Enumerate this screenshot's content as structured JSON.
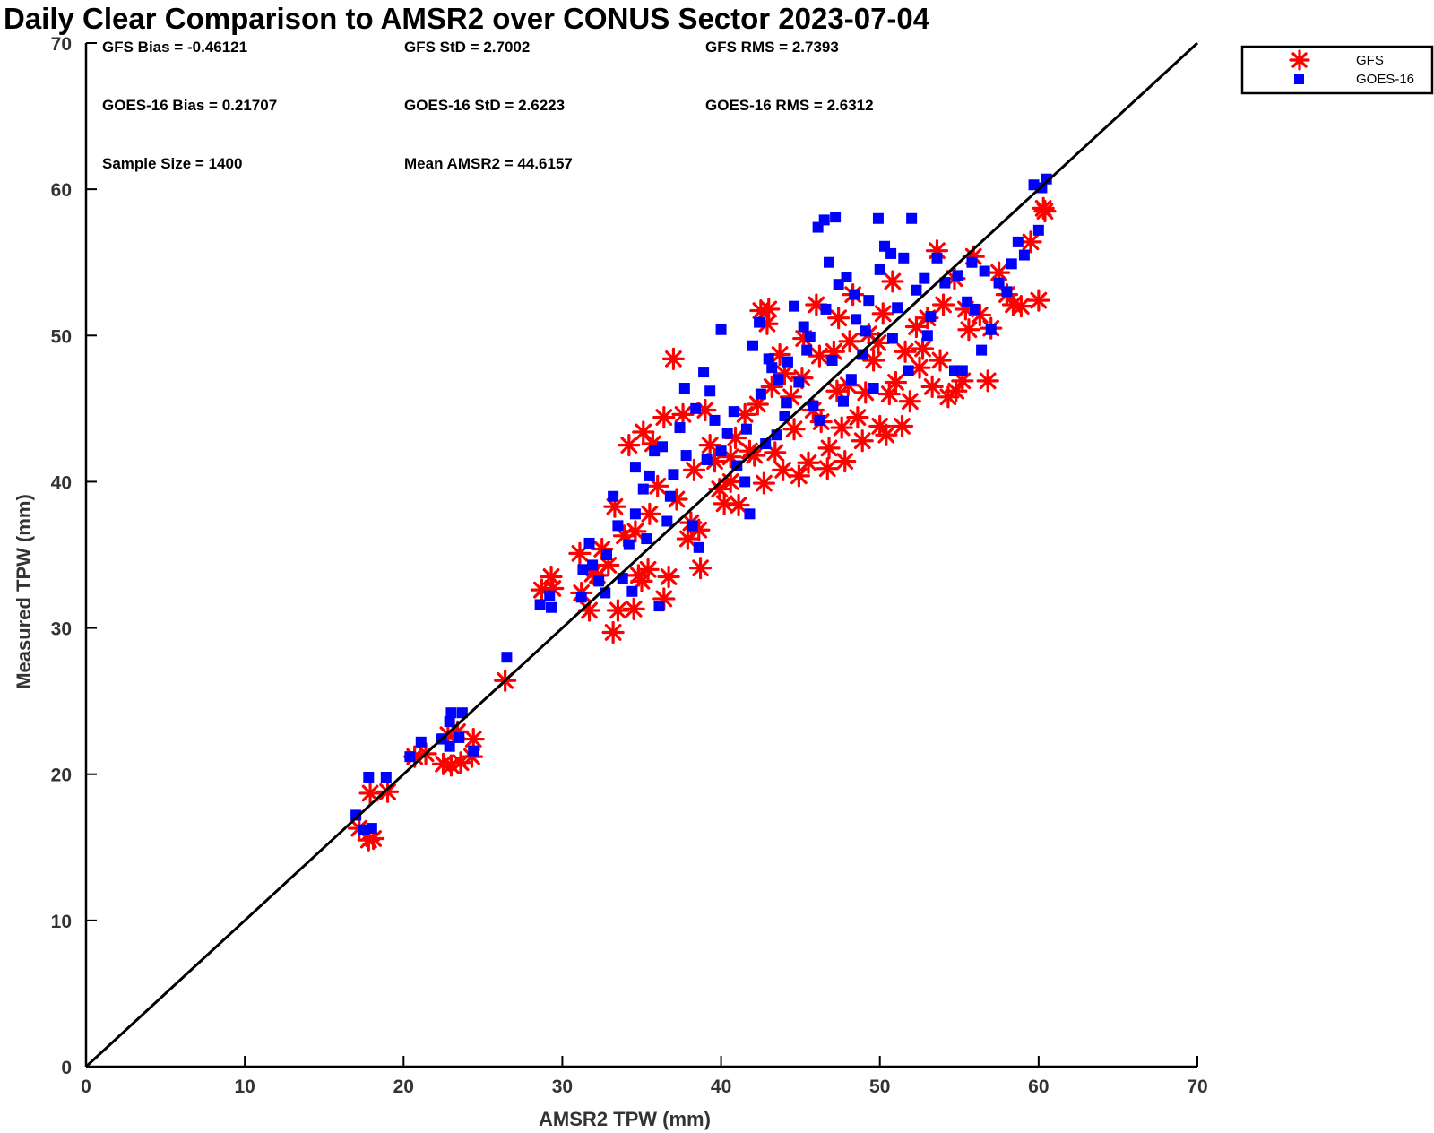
{
  "chart_data": {
    "type": "scatter",
    "title": "Daily Clear Comparison to AMSR2 over CONUS Sector 2023-07-04",
    "xlabel": "AMSR2 TPW (mm)",
    "ylabel": "Measured TPW (mm)",
    "xlim": [
      0,
      70
    ],
    "ylim": [
      0,
      70
    ],
    "xticks": [
      "0",
      "10",
      "20",
      "30",
      "40",
      "50",
      "60",
      "70"
    ],
    "yticks": [
      "0",
      "10",
      "20",
      "30",
      "40",
      "50",
      "60",
      "70"
    ],
    "grid": false,
    "legend_position": "outside-top-right",
    "reference_line": {
      "type": "identity",
      "from": [
        0,
        0
      ],
      "to": [
        70,
        70
      ],
      "color": "#000000"
    },
    "stats": {
      "gfs_bias": "GFS Bias = -0.46121",
      "gfs_std": "GFS StD = 2.7002",
      "gfs_rms": "GFS RMS = 2.7393",
      "goes_bias": "GOES-16 Bias = 0.21707",
      "goes_std": "GOES-16 StD = 2.6223",
      "goes_rms": "GOES-16 RMS = 2.6312",
      "sample_size": "Sample Size = 1400",
      "mean_amsr2": "Mean AMSR2 = 44.6157"
    },
    "series": [
      {
        "name": "GFS",
        "marker": "asterisk",
        "color": "#ff0000",
        "points": [
          [
            17.2,
            16.3
          ],
          [
            17.8,
            15.5
          ],
          [
            18.1,
            15.6
          ],
          [
            17.9,
            18.7
          ],
          [
            19.0,
            18.8
          ],
          [
            20.7,
            21.2
          ],
          [
            21.4,
            21.4
          ],
          [
            22.5,
            20.7
          ],
          [
            23.0,
            20.6
          ],
          [
            23.6,
            20.8
          ],
          [
            24.3,
            21.2
          ],
          [
            24.4,
            22.4
          ],
          [
            23.4,
            22.9
          ],
          [
            22.8,
            22.7
          ],
          [
            26.4,
            26.4
          ],
          [
            28.7,
            32.6
          ],
          [
            29.3,
            33.5
          ],
          [
            29.4,
            32.7
          ],
          [
            31.1,
            35.1
          ],
          [
            31.2,
            32.4
          ],
          [
            31.7,
            31.2
          ],
          [
            32.2,
            33.6
          ],
          [
            32.5,
            35.4
          ],
          [
            33.2,
            29.7
          ],
          [
            33.3,
            38.3
          ],
          [
            33.5,
            31.2
          ],
          [
            34.5,
            31.3
          ],
          [
            35.0,
            33.2
          ],
          [
            35.4,
            34.0
          ],
          [
            34.6,
            36.6
          ],
          [
            36.4,
            32.0
          ],
          [
            36.7,
            33.5
          ],
          [
            34.2,
            42.5
          ],
          [
            35.1,
            43.4
          ],
          [
            35.7,
            42.6
          ],
          [
            36.4,
            44.4
          ],
          [
            37.0,
            48.4
          ],
          [
            37.6,
            44.6
          ],
          [
            38.1,
            37.2
          ],
          [
            38.6,
            36.7
          ],
          [
            38.7,
            34.1
          ],
          [
            39.3,
            42.5
          ],
          [
            39.9,
            39.5
          ],
          [
            40.2,
            38.5
          ],
          [
            40.6,
            40.0
          ],
          [
            41.1,
            38.4
          ],
          [
            42.1,
            41.8
          ],
          [
            42.5,
            51.7
          ],
          [
            42.9,
            50.8
          ],
          [
            43.0,
            51.8
          ],
          [
            43.4,
            42.0
          ],
          [
            43.9,
            40.8
          ],
          [
            44.4,
            45.8
          ],
          [
            44.6,
            43.6
          ],
          [
            45.2,
            49.8
          ],
          [
            45.5,
            41.3
          ],
          [
            46.2,
            48.6
          ],
          [
            46.3,
            44.1
          ],
          [
            46.8,
            42.3
          ],
          [
            47.4,
            51.2
          ],
          [
            47.6,
            43.7
          ],
          [
            47.8,
            41.4
          ],
          [
            48.0,
            46.6
          ],
          [
            48.3,
            52.8
          ],
          [
            48.6,
            44.4
          ],
          [
            49.3,
            50.1
          ],
          [
            49.6,
            48.3
          ],
          [
            50.0,
            43.8
          ],
          [
            50.4,
            43.2
          ],
          [
            50.8,
            53.7
          ],
          [
            51.0,
            46.8
          ],
          [
            51.4,
            43.8
          ],
          [
            51.9,
            45.5
          ],
          [
            52.3,
            50.6
          ],
          [
            52.5,
            47.8
          ],
          [
            53.0,
            51.2
          ],
          [
            53.3,
            46.5
          ],
          [
            53.6,
            55.8
          ],
          [
            54.0,
            52.1
          ],
          [
            54.3,
            45.8
          ],
          [
            54.8,
            46.2
          ],
          [
            55.2,
            46.9
          ],
          [
            55.6,
            50.4
          ],
          [
            55.9,
            55.4
          ],
          [
            56.3,
            51.4
          ],
          [
            56.8,
            46.9
          ],
          [
            57.0,
            50.5
          ],
          [
            57.5,
            54.3
          ],
          [
            58.0,
            52.8
          ],
          [
            58.4,
            52.1
          ],
          [
            58.9,
            52.0
          ],
          [
            59.5,
            56.4
          ],
          [
            60.0,
            52.4
          ],
          [
            60.3,
            58.7
          ],
          [
            60.4,
            58.5
          ],
          [
            44.0,
            47.4
          ],
          [
            45.8,
            44.9
          ],
          [
            47.1,
            48.9
          ],
          [
            49.1,
            46.1
          ],
          [
            50.2,
            51.5
          ],
          [
            41.5,
            44.6
          ],
          [
            40.9,
            43.0
          ],
          [
            38.3,
            40.8
          ],
          [
            39.0,
            44.9
          ],
          [
            37.2,
            38.8
          ],
          [
            36.0,
            39.7
          ],
          [
            35.5,
            37.8
          ],
          [
            42.7,
            39.9
          ],
          [
            44.9,
            40.4
          ],
          [
            46.7,
            40.9
          ],
          [
            48.9,
            42.8
          ],
          [
            52.7,
            49.1
          ],
          [
            54.7,
            53.9
          ],
          [
            55.4,
            51.8
          ],
          [
            46.0,
            52.1
          ],
          [
            48.1,
            49.6
          ],
          [
            51.6,
            48.9
          ],
          [
            53.8,
            48.3
          ],
          [
            43.2,
            46.5
          ],
          [
            41.8,
            42.1
          ],
          [
            39.6,
            41.4
          ],
          [
            37.9,
            36.1
          ],
          [
            33.9,
            36.3
          ],
          [
            32.9,
            34.3
          ],
          [
            31.9,
            33.7
          ],
          [
            34.8,
            33.6
          ],
          [
            50.6,
            46.0
          ],
          [
            49.9,
            49.5
          ],
          [
            47.3,
            46.2
          ],
          [
            45.1,
            47.1
          ],
          [
            43.7,
            48.7
          ],
          [
            42.3,
            45.3
          ],
          [
            40.6,
            41.7
          ]
        ]
      },
      {
        "name": "GOES-16",
        "marker": "square",
        "color": "#0000ff",
        "points": [
          [
            17.0,
            17.2
          ],
          [
            17.5,
            16.2
          ],
          [
            18.0,
            16.3
          ],
          [
            17.8,
            19.8
          ],
          [
            18.9,
            19.8
          ],
          [
            20.4,
            21.2
          ],
          [
            21.1,
            22.2
          ],
          [
            22.4,
            22.4
          ],
          [
            22.9,
            23.6
          ],
          [
            23.0,
            24.2
          ],
          [
            23.7,
            24.2
          ],
          [
            23.5,
            22.5
          ],
          [
            24.4,
            21.6
          ],
          [
            22.9,
            21.9
          ],
          [
            26.5,
            28.0
          ],
          [
            28.6,
            31.6
          ],
          [
            29.3,
            31.4
          ],
          [
            29.2,
            32.2
          ],
          [
            31.2,
            32.1
          ],
          [
            31.3,
            34.0
          ],
          [
            31.7,
            35.8
          ],
          [
            32.3,
            33.2
          ],
          [
            32.7,
            32.4
          ],
          [
            33.2,
            39.0
          ],
          [
            33.5,
            37.0
          ],
          [
            33.8,
            33.4
          ],
          [
            34.4,
            32.5
          ],
          [
            34.6,
            37.8
          ],
          [
            35.1,
            39.5
          ],
          [
            36.1,
            31.5
          ],
          [
            34.6,
            41.0
          ],
          [
            35.5,
            40.4
          ],
          [
            35.8,
            42.1
          ],
          [
            36.3,
            42.4
          ],
          [
            36.8,
            39.0
          ],
          [
            37.4,
            43.7
          ],
          [
            37.8,
            41.8
          ],
          [
            38.2,
            37.0
          ],
          [
            38.6,
            35.5
          ],
          [
            39.1,
            41.5
          ],
          [
            39.6,
            44.2
          ],
          [
            40.0,
            42.1
          ],
          [
            40.4,
            43.3
          ],
          [
            41.0,
            41.1
          ],
          [
            41.5,
            40.0
          ],
          [
            41.8,
            37.8
          ],
          [
            40.0,
            50.4
          ],
          [
            42.0,
            49.3
          ],
          [
            42.4,
            50.9
          ],
          [
            43.0,
            48.4
          ],
          [
            43.6,
            47.0
          ],
          [
            44.1,
            45.4
          ],
          [
            44.6,
            52.0
          ],
          [
            45.2,
            50.6
          ],
          [
            45.6,
            49.9
          ],
          [
            46.1,
            57.4
          ],
          [
            46.5,
            57.9
          ],
          [
            47.2,
            58.1
          ],
          [
            46.8,
            55.0
          ],
          [
            47.4,
            53.5
          ],
          [
            47.9,
            54.0
          ],
          [
            48.5,
            51.1
          ],
          [
            48.9,
            48.7
          ],
          [
            49.3,
            52.4
          ],
          [
            49.9,
            58.0
          ],
          [
            50.3,
            56.1
          ],
          [
            50.7,
            55.6
          ],
          [
            51.5,
            55.3
          ],
          [
            52.0,
            58.0
          ],
          [
            52.3,
            53.1
          ],
          [
            52.8,
            53.9
          ],
          [
            53.2,
            51.3
          ],
          [
            53.6,
            55.3
          ],
          [
            54.1,
            53.6
          ],
          [
            54.7,
            47.6
          ],
          [
            55.2,
            47.6
          ],
          [
            55.5,
            52.3
          ],
          [
            56.0,
            51.8
          ],
          [
            56.4,
            49.0
          ],
          [
            57.0,
            50.4
          ],
          [
            57.5,
            53.6
          ],
          [
            58.0,
            53.0
          ],
          [
            58.3,
            54.9
          ],
          [
            58.7,
            56.4
          ],
          [
            59.1,
            55.5
          ],
          [
            59.7,
            60.3
          ],
          [
            60.2,
            60.1
          ],
          [
            60.5,
            60.7
          ],
          [
            60.0,
            57.2
          ],
          [
            44.9,
            46.8
          ],
          [
            45.8,
            45.2
          ],
          [
            47.0,
            48.3
          ],
          [
            48.2,
            47.0
          ],
          [
            49.1,
            50.3
          ],
          [
            50.8,
            49.8
          ],
          [
            51.1,
            51.9
          ],
          [
            44.0,
            44.5
          ],
          [
            43.5,
            43.2
          ],
          [
            42.8,
            42.6
          ],
          [
            41.6,
            43.6
          ],
          [
            40.8,
            44.8
          ],
          [
            39.3,
            46.2
          ],
          [
            38.9,
            47.5
          ],
          [
            37.7,
            46.4
          ],
          [
            38.4,
            45.0
          ],
          [
            37.0,
            40.5
          ],
          [
            36.6,
            37.3
          ],
          [
            35.3,
            36.1
          ],
          [
            34.2,
            35.7
          ],
          [
            32.8,
            35.0
          ],
          [
            31.9,
            34.3
          ],
          [
            46.2,
            44.2
          ],
          [
            47.7,
            45.5
          ],
          [
            49.6,
            46.4
          ],
          [
            51.8,
            47.6
          ],
          [
            53.0,
            50.0
          ],
          [
            54.9,
            54.1
          ],
          [
            55.8,
            55.0
          ],
          [
            56.6,
            54.4
          ],
          [
            50.0,
            54.5
          ],
          [
            48.4,
            52.8
          ],
          [
            46.6,
            51.8
          ],
          [
            45.4,
            49.0
          ],
          [
            44.2,
            48.2
          ],
          [
            43.2,
            47.8
          ],
          [
            42.5,
            46.0
          ]
        ]
      }
    ]
  }
}
